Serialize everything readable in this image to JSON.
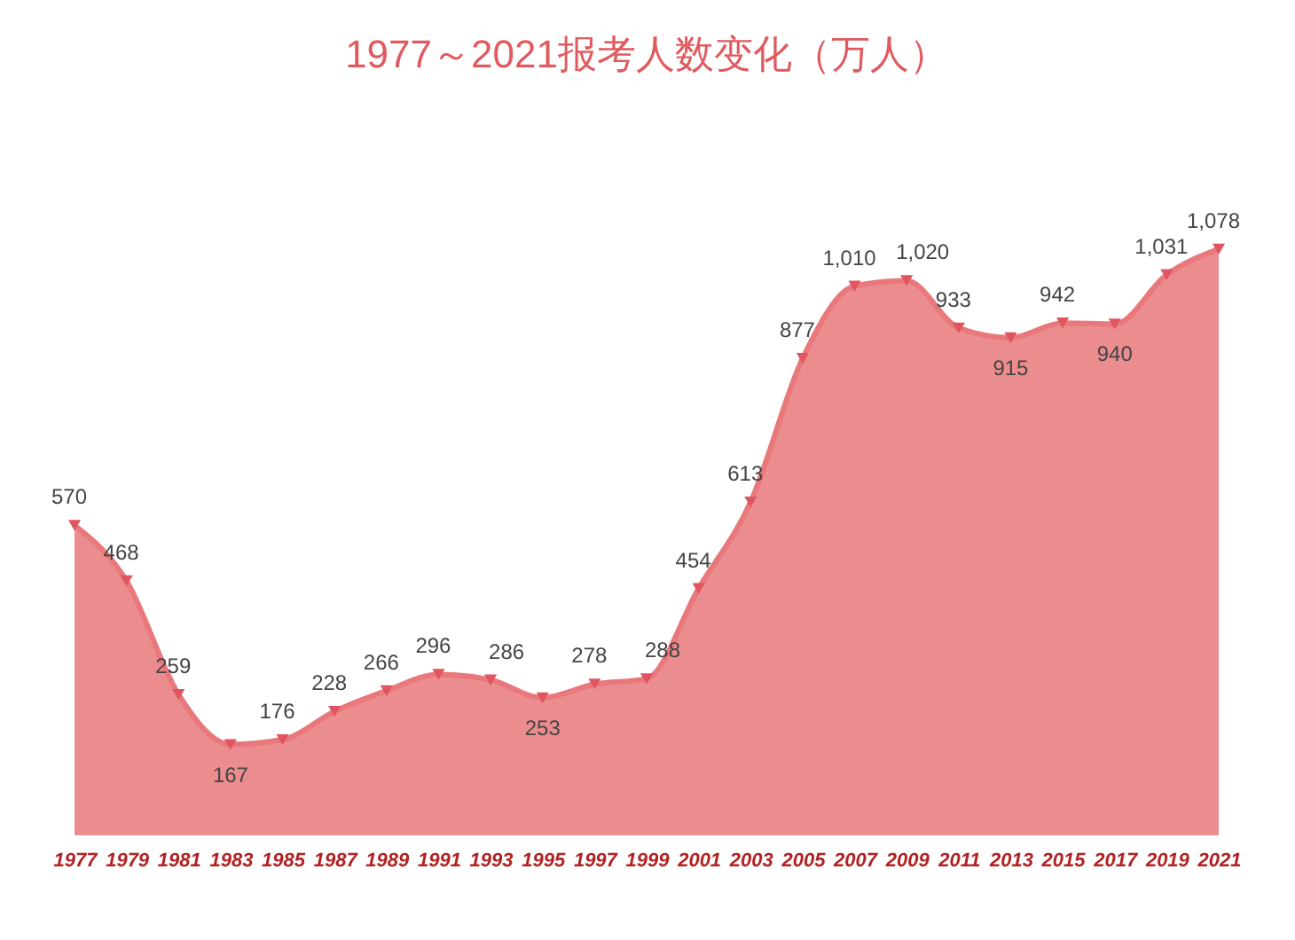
{
  "chart_data": {
    "type": "area",
    "title": "1977～2021报考人数变化（万人）",
    "categories": [
      "1977",
      "1979",
      "1981",
      "1983",
      "1985",
      "1987",
      "1989",
      "1991",
      "1993",
      "1995",
      "1997",
      "1999",
      "2001",
      "2003",
      "2005",
      "2007",
      "2009",
      "2011",
      "2013",
      "2015",
      "2017",
      "2019",
      "2021"
    ],
    "series": [
      {
        "color": "#e8787b",
        "values": [
          570,
          468,
          259,
          167,
          176,
          228,
          266,
          296,
          286,
          253,
          278,
          288,
          454,
          613,
          877,
          1010,
          1020,
          933,
          915,
          942,
          940,
          1031,
          1078
        ],
        "value_labels": [
          "570",
          "468",
          "259",
          "167",
          "176",
          "228",
          "266",
          "296",
          "286",
          "253",
          "278",
          "288",
          "454",
          "613",
          "877",
          "1,010",
          "1,020",
          "933",
          "915",
          "942",
          "940",
          "1,031",
          "1,078"
        ]
      }
    ],
    "marker": "triangle",
    "grid": false,
    "tick_labels": "x"
  }
}
